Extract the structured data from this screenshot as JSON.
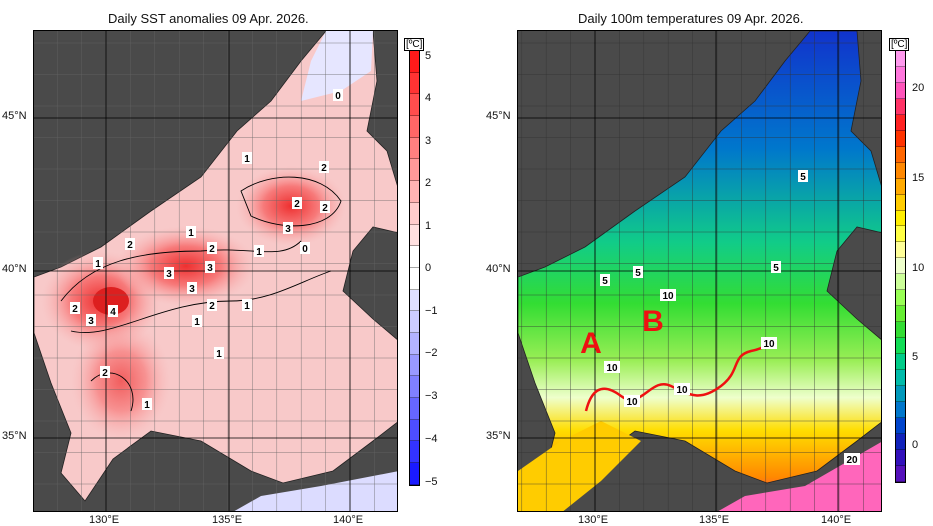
{
  "left_panel": {
    "title": "Daily SST anomalies 09 Apr. 2026.",
    "unit": "[ºC]",
    "colorbar_ticks": [
      "5",
      "4",
      "3",
      "2",
      "1",
      "0",
      "−1",
      "−2",
      "−3",
      "−4",
      "−5"
    ],
    "colorbar_colors": [
      "#ff1a1a",
      "#ff3333",
      "#ff4d4d",
      "#ff6666",
      "#ff8080",
      "#ff9999",
      "#ffb3b3",
      "#ffcccc",
      "#ffe0e0",
      "#ffffff",
      "#ffffff",
      "#e0e0ff",
      "#ccccff",
      "#b3b3ff",
      "#9999ff",
      "#8080ff",
      "#6666ff",
      "#4d4dff",
      "#3333ff",
      "#1a1aff"
    ],
    "contour_labels": [
      "0",
      "1",
      "2",
      "2",
      "2",
      "3",
      "2",
      "1",
      "2",
      "3",
      "1",
      "0",
      "3",
      "3",
      "1",
      "2",
      "3",
      "4",
      "2",
      "1",
      "1",
      "1",
      "2",
      "1"
    ]
  },
  "right_panel": {
    "title": "Daily 100m temperatures 09 Apr. 2026.",
    "unit": "[ºC]",
    "colorbar_ticks": [
      "20",
      "15",
      "10",
      "5",
      "0"
    ],
    "colorbar_colors": [
      "#ff99ee",
      "#ff77dd",
      "#ff55bb",
      "#ff3366",
      "#ff2222",
      "#ff3300",
      "#ff6600",
      "#ff8800",
      "#ffaa00",
      "#ffcc00",
      "#ffee00",
      "#ffff44",
      "#ffff99",
      "#eeffcc",
      "#ccff99",
      "#99ff55",
      "#66ee33",
      "#33dd33",
      "#11dd55",
      "#00cc88",
      "#00bbaa",
      "#0099bb",
      "#0077cc",
      "#0044cc",
      "#1122bb",
      "#3311bb",
      "#5511bb"
    ],
    "contour_labels": [
      "5",
      "5",
      "5",
      "5",
      "10",
      "10",
      "10",
      "10",
      "10",
      "20"
    ],
    "markers": [
      "A",
      "B"
    ],
    "marker_color": "#ee1111"
  },
  "axes": {
    "lat_labels": [
      "45°N",
      "40°N",
      "35°N"
    ],
    "lon_labels": [
      "130°E",
      "135°E",
      "140°E"
    ]
  }
}
